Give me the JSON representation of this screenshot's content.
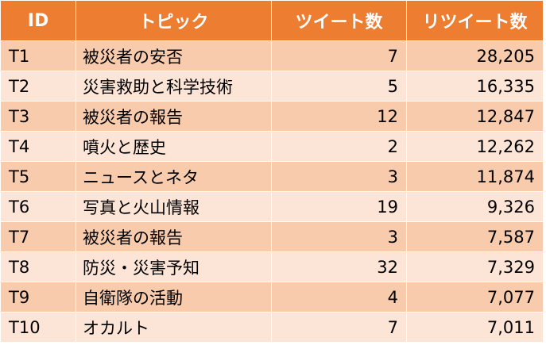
{
  "table": {
    "headers": [
      "ID",
      "トピック",
      "ツイート数",
      "リツイート数"
    ],
    "rows": [
      {
        "id": "T1",
        "topic": "被災者の安否",
        "tweets": "7",
        "retweets": "28,205"
      },
      {
        "id": "T2",
        "topic": "災害救助と科学技術",
        "tweets": "5",
        "retweets": "16,335"
      },
      {
        "id": "T3",
        "topic": "被災者の報告",
        "tweets": "12",
        "retweets": "12,847"
      },
      {
        "id": "T4",
        "topic": "噴火と歴史",
        "tweets": "2",
        "retweets": "12,262"
      },
      {
        "id": "T5",
        "topic": "ニュースとネタ",
        "tweets": "3",
        "retweets": "11,874"
      },
      {
        "id": "T6",
        "topic": "写真と火山情報",
        "tweets": "19",
        "retweets": "9,326"
      },
      {
        "id": "T7",
        "topic": "被災者の報告",
        "tweets": "3",
        "retweets": "7,587"
      },
      {
        "id": "T8",
        "topic": "防災・災害予知",
        "tweets": "32",
        "retweets": "7,329"
      },
      {
        "id": "T9",
        "topic": "自衛隊の活動",
        "tweets": "4",
        "retweets": "7,077"
      },
      {
        "id": "T10",
        "topic": "オカルト",
        "tweets": "7",
        "retweets": "7,011"
      }
    ]
  },
  "colors": {
    "header_bg": "#ed7d31",
    "header_text": "#ffffff",
    "row_odd": "#f8cbad",
    "row_even": "#fce4d6"
  }
}
